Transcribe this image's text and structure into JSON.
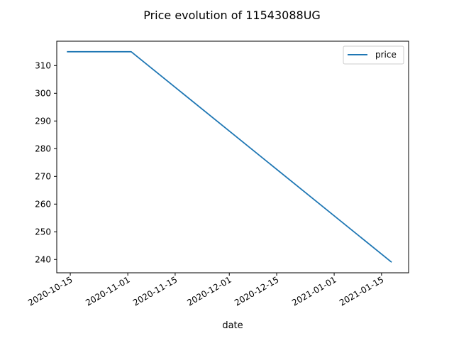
{
  "chart_data": {
    "type": "line",
    "title": "Price evolution of 11543088UG",
    "xlabel": "date",
    "ylabel": "",
    "x_ticks": [
      "2020-10-15",
      "2020-11-01",
      "2020-11-15",
      "2020-12-01",
      "2020-12-15",
      "2021-01-01",
      "2021-01-15"
    ],
    "y_ticks": [
      240,
      250,
      260,
      270,
      280,
      290,
      300,
      310
    ],
    "xlim": [
      "2020-10-11",
      "2021-01-23"
    ],
    "ylim": [
      235.2,
      318.8
    ],
    "grid": false,
    "legend_position": "top-right",
    "series": [
      {
        "name": "price",
        "color": "#1f77b4",
        "x": [
          "2020-10-14",
          "2020-11-02",
          "2021-01-18"
        ],
        "values": [
          315,
          315,
          239
        ]
      }
    ]
  }
}
